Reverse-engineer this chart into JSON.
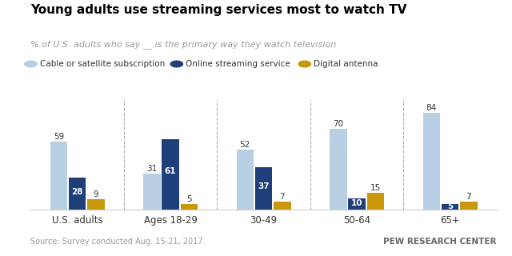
{
  "title": "Young adults use streaming services most to watch TV",
  "subtitle": "% of U.S. adults who say __ is the primary way they watch television",
  "categories": [
    "U.S. adults",
    "Ages 18-29",
    "30-49",
    "50-64",
    "65+"
  ],
  "series": {
    "Cable or satellite subscription": [
      59,
      31,
      52,
      70,
      84
    ],
    "Online streaming service": [
      28,
      61,
      37,
      10,
      5
    ],
    "Digital antenna": [
      9,
      5,
      7,
      15,
      7
    ]
  },
  "colors": {
    "Cable or satellite subscription": "#b8cfe4",
    "Online streaming service": "#1f3f7a",
    "Digital antenna": "#c8980a"
  },
  "bar_width": 0.2,
  "ylim": [
    0,
    95
  ],
  "source": "Source: Survey conducted Aug. 15-21, 2017.",
  "credit": "PEW RESEARCH CENTER",
  "legend_order": [
    "Cable or satellite subscription",
    "Online streaming service",
    "Digital antenna"
  ],
  "background_color": "#ffffff"
}
